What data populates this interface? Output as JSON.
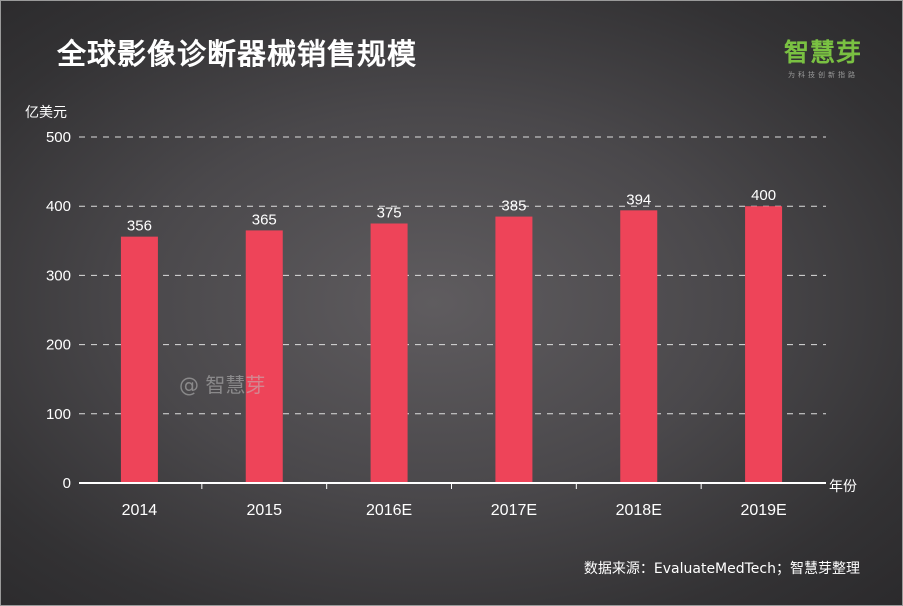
{
  "header": {
    "title": "全球影像诊断器械销售规模",
    "logo_text": "智慧芽",
    "logo_tagline": "为科技创新指路"
  },
  "watermark": "@ 智慧芽",
  "footer": {
    "source": "数据来源：EvaluateMedTech；智慧芽整理"
  },
  "colors": {
    "bar": "#ee4459",
    "logo": "#7ac142",
    "gridline": "#dddddd"
  },
  "chart_data": {
    "type": "bar",
    "title": "全球影像诊断器械销售规模",
    "xlabel": "年份",
    "ylabel": "亿美元",
    "categories": [
      "2014",
      "2015",
      "2016E",
      "2017E",
      "2018E",
      "2019E"
    ],
    "values": [
      356,
      365,
      375,
      385,
      394,
      400
    ],
    "data_labels": [
      "356",
      "365",
      "375",
      "385",
      "394",
      "400"
    ],
    "ylim": [
      0,
      500
    ],
    "yticks": [
      "0",
      "100",
      "200",
      "300",
      "400",
      "500"
    ],
    "grid": true,
    "legend": "none"
  }
}
